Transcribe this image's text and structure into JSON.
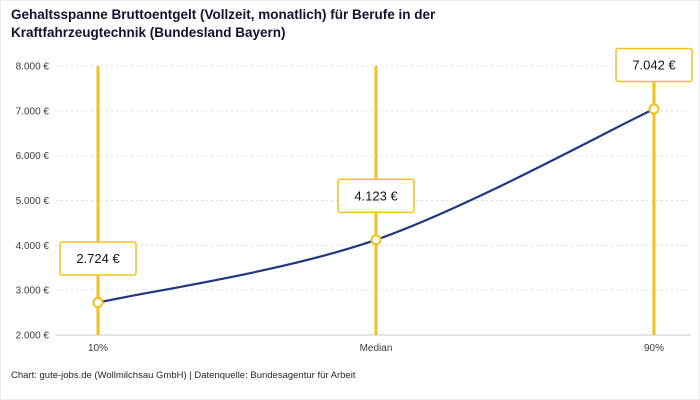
{
  "title_lines": [
    "Gehaltsspanne Bruttoentgelt (Vollzeit, monatlich) für Berufe in der",
    "Kraftfahrzeugtechnik (Bundesland Bayern)"
  ],
  "footer": "Chart: gute-jobs.de (Wollmilchsau GmbH) | Datenquelle: Bundesagentur für Arbeit",
  "colors": {
    "line": "#20387f",
    "accent": "#f2c21c",
    "grid": "#dcdcdc",
    "axis": "#c9c9c9",
    "title_text": "#121230"
  },
  "chart_data": {
    "type": "line",
    "title": "Gehaltsspanne Bruttoentgelt (Vollzeit, monatlich) für Berufe in der Kraftfahrzeugtechnik (Bundesland Bayern)",
    "categories": [
      "10%",
      "Median",
      "90%"
    ],
    "values": [
      2724,
      4123,
      7042
    ],
    "value_labels": [
      "2.724 €",
      "4.123 €",
      "7.042 €"
    ],
    "ylim": [
      2000,
      8000
    ],
    "y_ticks": [
      2000,
      3000,
      4000,
      5000,
      6000,
      7000,
      8000
    ],
    "y_tick_labels": [
      "2.000 €",
      "3.000 €",
      "4.000 €",
      "5.000 €",
      "6.000 €",
      "7.000 €",
      "8.000 €"
    ],
    "xlabel": "",
    "ylabel": "",
    "grid": true,
    "legend_position": "none",
    "line_color": "#20387f",
    "highlight_color": "#f2c21c",
    "source": "Bundesagentur für Arbeit"
  }
}
